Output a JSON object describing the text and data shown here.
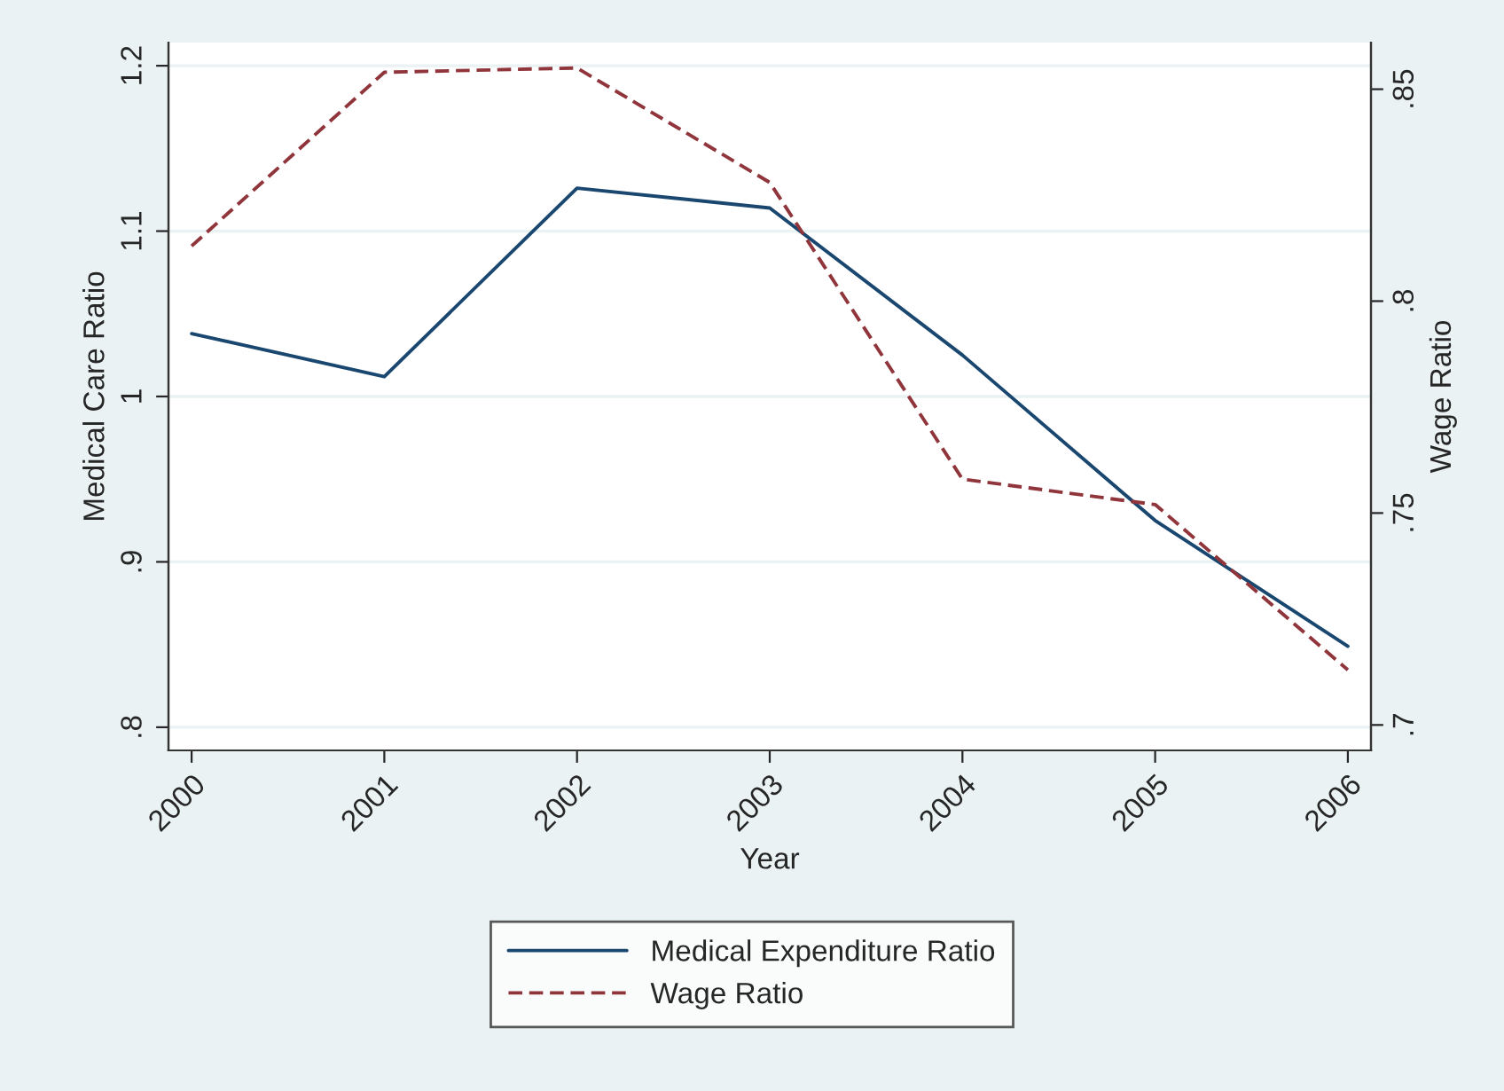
{
  "chart_data": {
    "type": "line",
    "xlabel": "Year",
    "ylabel": "Medical Care Ratio",
    "y2label": "Wage Ratio",
    "x": [
      2000,
      2001,
      2002,
      2003,
      2004,
      2005,
      2006
    ],
    "xlim": [
      1999.88,
      2006.12
    ],
    "xticks": [
      2000,
      2001,
      2002,
      2003,
      2004,
      2005,
      2006
    ],
    "ylim": [
      0.786,
      1.214
    ],
    "yticks": [
      {
        "value": 0.8,
        "label": ".8"
      },
      {
        "value": 0.9,
        "label": ".9"
      },
      1,
      1.1,
      1.2
    ],
    "y2lim": [
      0.694,
      0.861
    ],
    "y2ticks": [
      {
        "value": 0.7,
        "label": ".7"
      },
      {
        "value": 0.75,
        "label": ".75"
      },
      {
        "value": 0.8,
        "label": ".8"
      },
      {
        "value": 0.85,
        "label": ".85"
      }
    ],
    "series": [
      {
        "name": "Medical Expenditure Ratio",
        "color": "#1a476f",
        "line_style": "solid",
        "values": [
          1.038,
          1.012,
          1.126,
          1.114,
          1.025,
          0.925,
          0.849
        ]
      },
      {
        "name": "Wage Ratio",
        "color": "#90353b",
        "line_style": "dashed",
        "axis": "y2",
        "values": [
          0.813,
          0.854,
          0.855,
          0.828,
          0.758,
          0.752,
          0.713
        ]
      }
    ],
    "grid": "y",
    "legend": "bottom",
    "marker": "none"
  }
}
